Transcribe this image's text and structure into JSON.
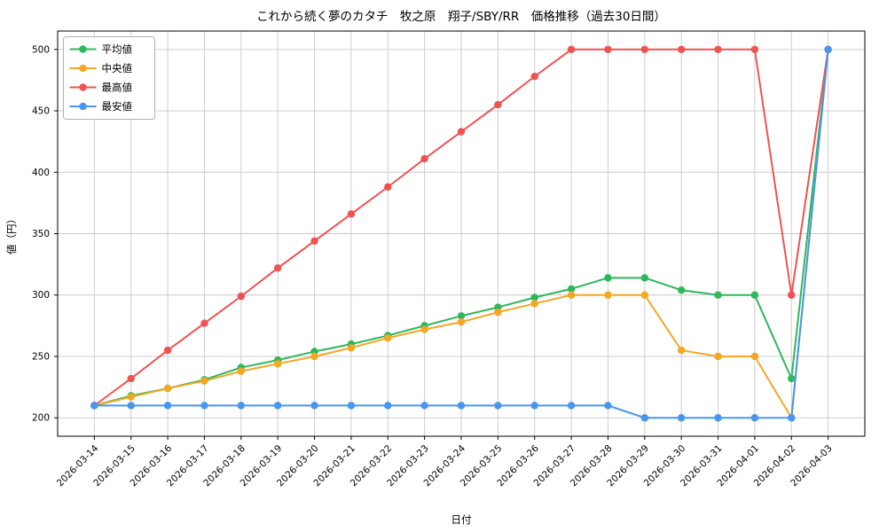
{
  "chart_data": {
    "type": "line",
    "title": "これから続く夢のカタチ　牧之原　翔子/SBY/RR　価格推移（過去30日間）",
    "xlabel": "日付",
    "ylabel": "値（円）",
    "categories": [
      "2026-03-14",
      "2026-03-15",
      "2026-03-16",
      "2026-03-17",
      "2026-03-18",
      "2026-03-19",
      "2026-03-20",
      "2026-03-21",
      "2026-03-22",
      "2026-03-23",
      "2026-03-24",
      "2026-03-25",
      "2026-03-26",
      "2026-03-27",
      "2026-03-28",
      "2026-03-29",
      "2026-03-30",
      "2026-03-31",
      "2026-04-01",
      "2026-04-02",
      "2026-04-03"
    ],
    "series": [
      {
        "name": "平均値",
        "color": "#2eb85c",
        "values": [
          210,
          218,
          224,
          231,
          241,
          247,
          254,
          260,
          267,
          275,
          283,
          290,
          298,
          305,
          314,
          314,
          304,
          300,
          300,
          232,
          500
        ]
      },
      {
        "name": "中央値",
        "color": "#f5a623",
        "values": [
          210,
          217,
          224,
          230,
          238,
          244,
          250,
          257,
          265,
          272,
          278,
          286,
          293,
          300,
          300,
          300,
          255,
          250,
          250,
          200,
          500
        ]
      },
      {
        "name": "最高値",
        "color": "#ef5350",
        "values": [
          210,
          232,
          255,
          277,
          299,
          322,
          344,
          366,
          388,
          411,
          433,
          455,
          478,
          500,
          500,
          500,
          500,
          500,
          500,
          300,
          500
        ]
      },
      {
        "name": "最安値",
        "color": "#4896ef",
        "values": [
          210,
          210,
          210,
          210,
          210,
          210,
          210,
          210,
          210,
          210,
          210,
          210,
          210,
          210,
          210,
          200,
          200,
          200,
          200,
          200,
          500
        ]
      }
    ],
    "ylim": [
      185,
      515
    ],
    "yticks": [
      200,
      250,
      300,
      350,
      400,
      450,
      500
    ],
    "grid": true,
    "legend_position": "upper left"
  }
}
